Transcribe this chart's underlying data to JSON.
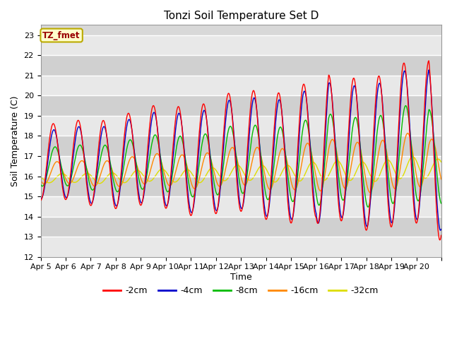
{
  "title": "Tonzi Soil Temperature Set D",
  "xlabel": "Time",
  "ylabel": "Soil Temperature (C)",
  "ylim": [
    12.0,
    23.5
  ],
  "yticks": [
    12.0,
    13.0,
    14.0,
    15.0,
    16.0,
    17.0,
    18.0,
    19.0,
    20.0,
    21.0,
    22.0,
    23.0
  ],
  "bg_color": "#e8e8e8",
  "series_colors": {
    "-2cm": "#ff0000",
    "-4cm": "#0000cc",
    "-8cm": "#00bb00",
    "-16cm": "#ff8800",
    "-32cm": "#dddd00"
  },
  "x_tick_labels": [
    "Apr 5",
    "Apr 6",
    "Apr 7",
    "Apr 8",
    "Apr 9",
    "Apr 10",
    "Apr 11",
    "Apr 12",
    "Apr 13",
    "Apr 14",
    "Apr 15",
    "Apr 16",
    "Apr 17",
    "Apr 18",
    "Apr 19",
    "Apr 20"
  ],
  "n_days": 16,
  "points_per_day": 96
}
